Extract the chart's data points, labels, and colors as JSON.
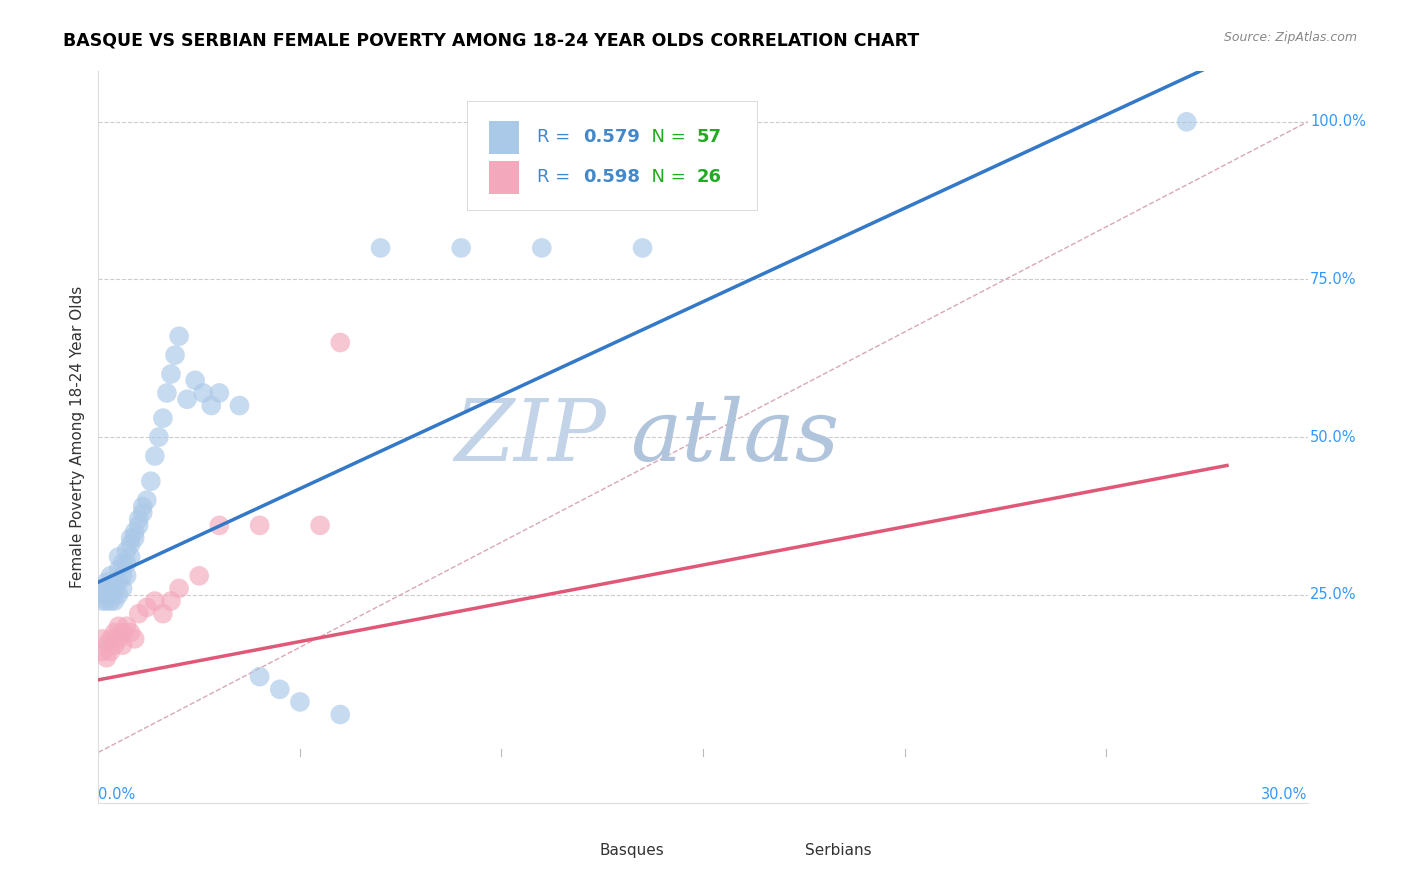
{
  "title": "BASQUE VS SERBIAN FEMALE POVERTY AMONG 18-24 YEAR OLDS CORRELATION CHART",
  "source": "Source: ZipAtlas.com",
  "ylabel": "Female Poverty Among 18-24 Year Olds",
  "xmin": 0.0,
  "xmax": 0.3,
  "ymin": -0.08,
  "ymax": 1.08,
  "basque_R": "0.579",
  "basque_N": "57",
  "serbian_R": "0.598",
  "serbian_N": "26",
  "basque_color": "#aac8e8",
  "serbian_color": "#f4a8bc",
  "basque_line_color": "#3478c8",
  "serbian_line_color": "#e05878",
  "diagonal_color": "#e0b0b8",
  "watermark_ZIP_color": "#c8d8ec",
  "watermark_atlas_color": "#b8c8e0",
  "legend_R_color": "#4488cc",
  "legend_N_color": "#22aa22",
  "ytick_vals": [
    0.25,
    0.5,
    0.75,
    1.0
  ],
  "ytick_labels": [
    "25.0%",
    "50.0%",
    "75.0%",
    "100.0%"
  ],
  "basque_x": [
    0.001,
    0.001,
    0.001,
    0.002,
    0.002,
    0.002,
    0.002,
    0.003,
    0.003,
    0.003,
    0.003,
    0.004,
    0.004,
    0.004,
    0.005,
    0.005,
    0.005,
    0.005,
    0.006,
    0.006,
    0.006,
    0.007,
    0.007,
    0.007,
    0.008,
    0.008,
    0.008,
    0.009,
    0.009,
    0.01,
    0.01,
    0.011,
    0.011,
    0.012,
    0.013,
    0.014,
    0.015,
    0.016,
    0.017,
    0.018,
    0.019,
    0.02,
    0.022,
    0.024,
    0.026,
    0.028,
    0.03,
    0.035,
    0.04,
    0.045,
    0.05,
    0.06,
    0.07,
    0.09,
    0.11,
    0.135,
    0.27
  ],
  "basque_y": [
    0.26,
    0.25,
    0.24,
    0.27,
    0.26,
    0.25,
    0.24,
    0.28,
    0.26,
    0.25,
    0.24,
    0.27,
    0.26,
    0.24,
    0.31,
    0.29,
    0.27,
    0.25,
    0.3,
    0.28,
    0.26,
    0.32,
    0.3,
    0.28,
    0.34,
    0.33,
    0.31,
    0.35,
    0.34,
    0.37,
    0.36,
    0.39,
    0.38,
    0.4,
    0.43,
    0.47,
    0.5,
    0.53,
    0.57,
    0.6,
    0.63,
    0.66,
    0.56,
    0.59,
    0.57,
    0.55,
    0.57,
    0.55,
    0.12,
    0.1,
    0.08,
    0.06,
    0.8,
    0.8,
    0.8,
    0.8,
    1.0
  ],
  "serbian_x": [
    0.001,
    0.001,
    0.002,
    0.002,
    0.003,
    0.003,
    0.004,
    0.004,
    0.005,
    0.005,
    0.006,
    0.006,
    0.007,
    0.008,
    0.009,
    0.01,
    0.012,
    0.014,
    0.016,
    0.018,
    0.02,
    0.025,
    0.03,
    0.04,
    0.055,
    0.06
  ],
  "serbian_y": [
    0.18,
    0.16,
    0.17,
    0.15,
    0.18,
    0.16,
    0.19,
    0.17,
    0.2,
    0.18,
    0.19,
    0.17,
    0.2,
    0.19,
    0.18,
    0.22,
    0.23,
    0.24,
    0.22,
    0.24,
    0.26,
    0.28,
    0.36,
    0.36,
    0.36,
    0.65
  ],
  "blue_line_x0": 0.0,
  "blue_line_y0": 0.27,
  "blue_line_x1": 0.28,
  "blue_line_y1": 1.1,
  "pink_line_x0": 0.0,
  "pink_line_y0": 0.115,
  "pink_line_x1": 0.28,
  "pink_line_y1": 0.455
}
